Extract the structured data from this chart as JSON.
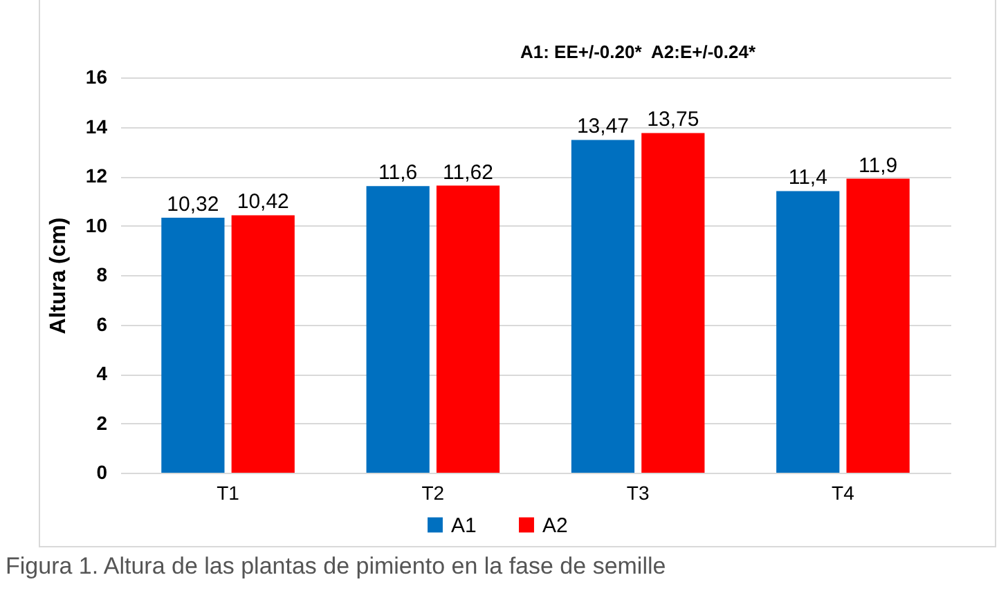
{
  "chart_data": {
    "type": "bar",
    "ylabel": "Altura (cm)",
    "categories": [
      "T1",
      "T2",
      "T3",
      "T4"
    ],
    "series": [
      {
        "name": "A1",
        "color": "#0070c0",
        "values": [
          10.32,
          11.6,
          13.47,
          11.4
        ],
        "value_labels": [
          "10,32",
          "11,6",
          "13,47",
          "11,4"
        ]
      },
      {
        "name": "A2",
        "color": "#ff0000",
        "values": [
          10.42,
          11.62,
          13.75,
          11.9
        ],
        "value_labels": [
          "10,42",
          "11,62",
          "13,75",
          "11,9"
        ]
      }
    ],
    "ylim": [
      0,
      16
    ],
    "yticks": [
      0,
      2,
      4,
      6,
      8,
      10,
      12,
      14,
      16
    ],
    "grid": "y",
    "legend": "bottom",
    "annotations": [
      "A1: EE+/-0.20*  A2:E+/-0.24*",
      "Figura 1. Altura de las plantas de pimiento en la fase de semille"
    ]
  }
}
